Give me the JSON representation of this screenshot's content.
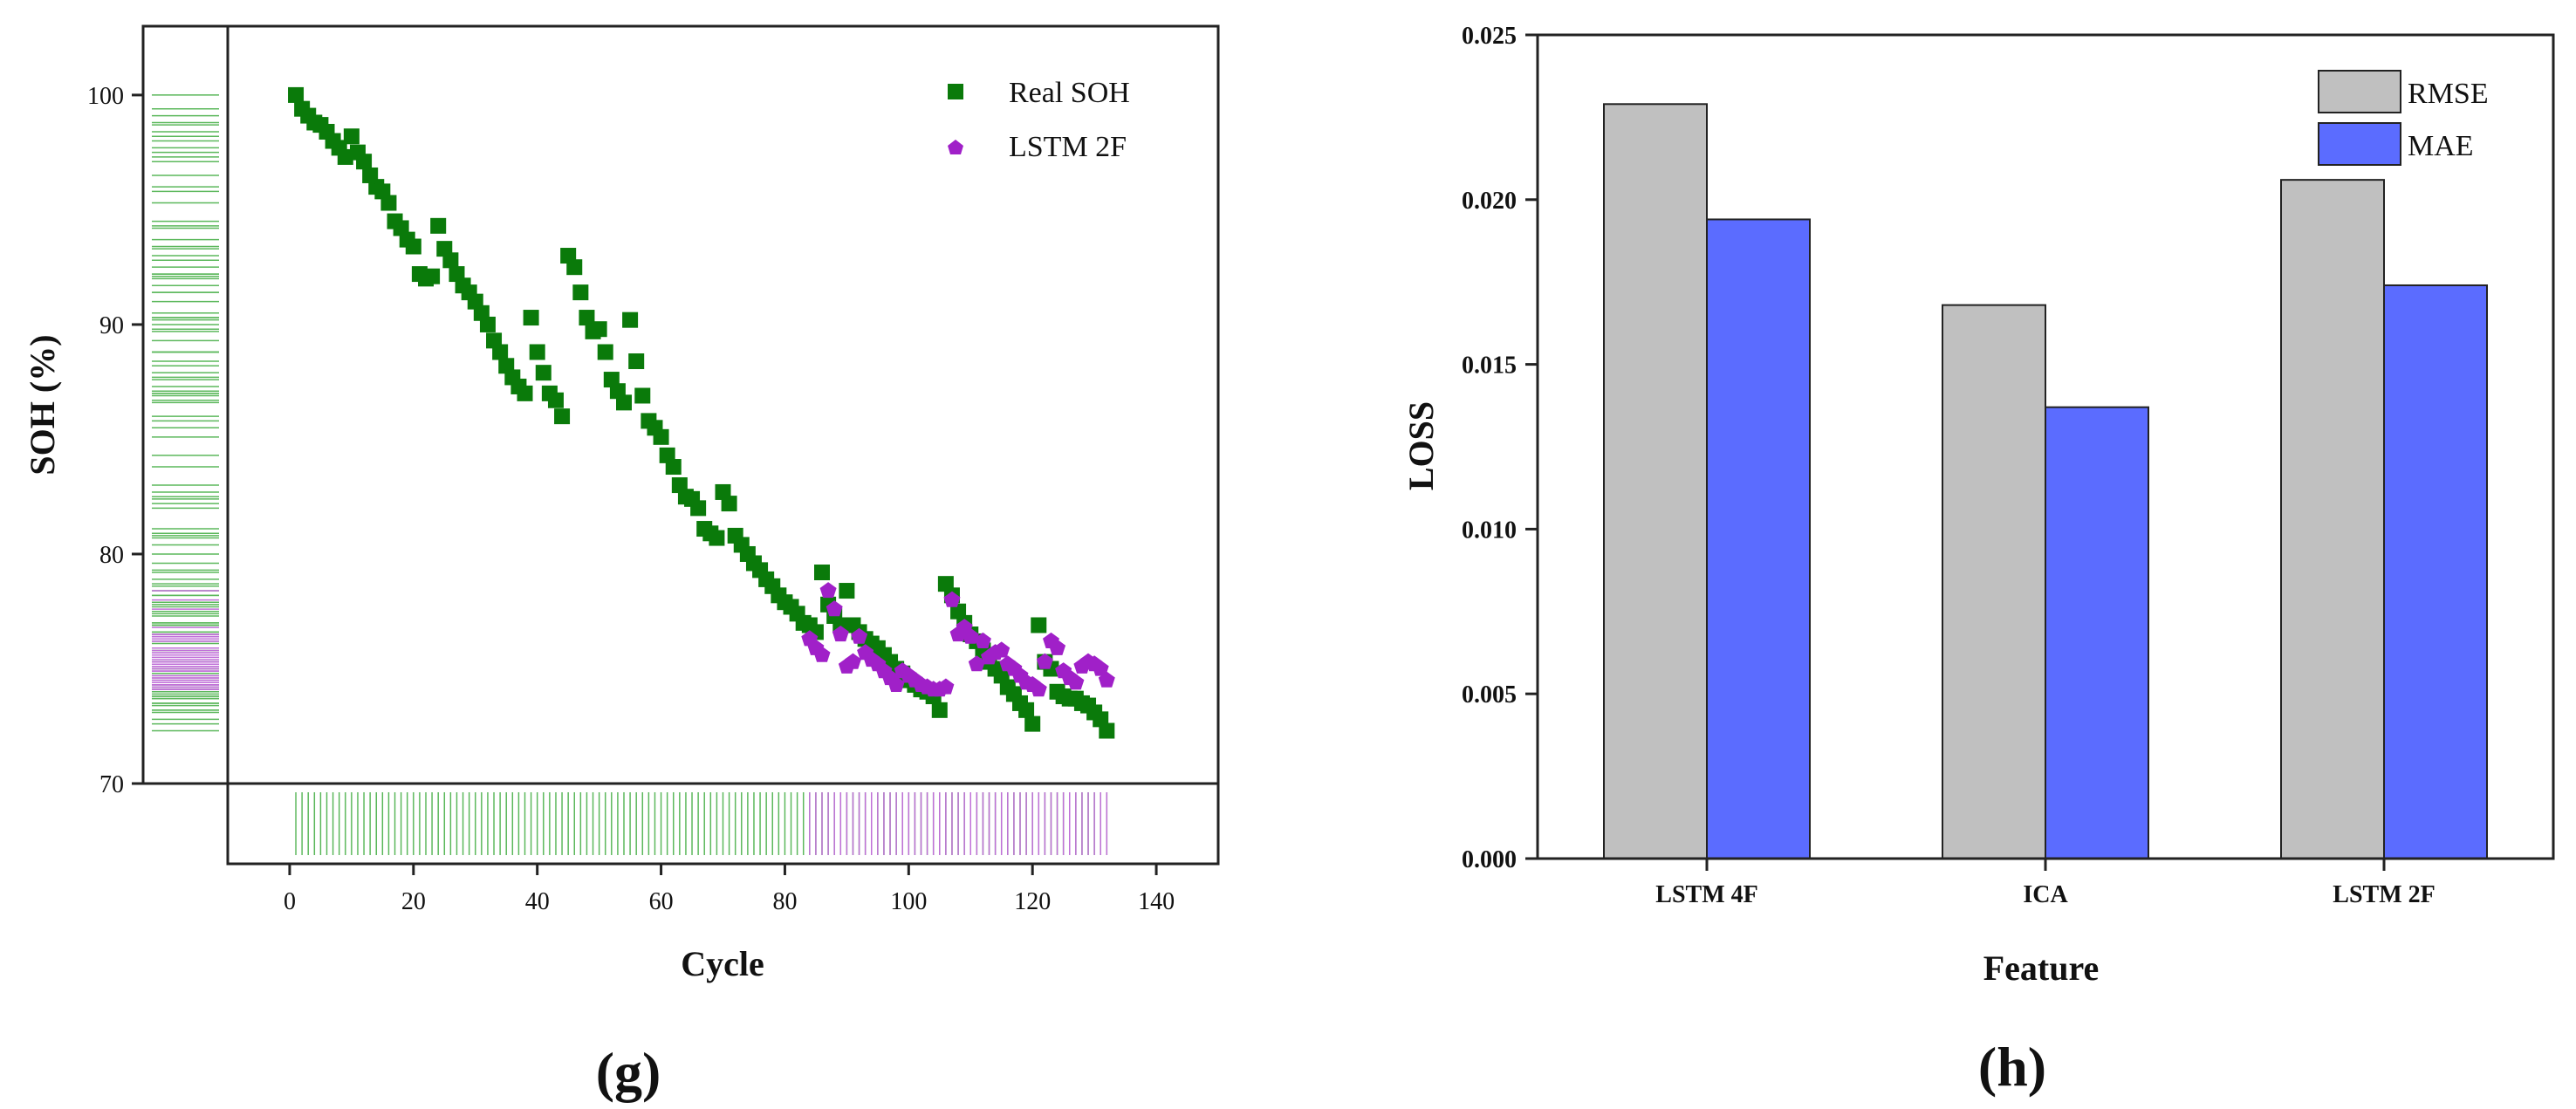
{
  "chart_data": [
    {
      "type": "scatter",
      "panel_label": "(g)",
      "xlabel": "Cycle",
      "ylabel": "SOH (%)",
      "xlim": [
        -10,
        150
      ],
      "ylim": [
        70,
        103
      ],
      "xticks": [
        0,
        20,
        40,
        60,
        80,
        100,
        120,
        140
      ],
      "yticks": [
        70,
        80,
        90,
        100
      ],
      "legend_position": "top-right",
      "marginal_rugs": true,
      "colors": {
        "real": "#0a7a0a",
        "lstm": "#a020c8",
        "real_rug": "#5cb85c",
        "lstm_rug": "#c070d8"
      },
      "series": [
        {
          "name": "Real SOH",
          "marker": "square",
          "x": [
            1,
            2,
            3,
            4,
            5,
            6,
            7,
            8,
            9,
            10,
            11,
            12,
            13,
            14,
            15,
            16,
            17,
            18,
            19,
            20,
            21,
            22,
            23,
            24,
            25,
            26,
            27,
            28,
            29,
            30,
            31,
            32,
            33,
            34,
            35,
            36,
            37,
            38,
            39,
            40,
            41,
            42,
            43,
            44,
            45,
            46,
            47,
            48,
            49,
            50,
            51,
            52,
            53,
            54,
            55,
            56,
            57,
            58,
            59,
            60,
            61,
            62,
            63,
            64,
            65,
            66,
            67,
            68,
            69,
            70,
            71,
            72,
            73,
            74,
            75,
            76,
            77,
            78,
            79,
            80,
            81,
            82,
            83,
            84,
            85,
            86,
            87,
            88,
            89,
            90,
            91,
            92,
            93,
            94,
            95,
            96,
            97,
            98,
            99,
            100,
            101,
            102,
            103,
            104,
            105,
            106,
            107,
            108,
            109,
            110,
            111,
            112,
            113,
            114,
            115,
            116,
            117,
            118,
            119,
            120,
            121,
            122,
            123,
            124,
            125,
            126,
            127,
            128,
            129,
            130,
            131,
            132
          ],
          "y": [
            100.0,
            99.4,
            99.1,
            98.8,
            98.7,
            98.4,
            98.0,
            97.7,
            97.3,
            98.2,
            97.5,
            97.1,
            96.5,
            96.0,
            95.8,
            95.3,
            94.5,
            94.2,
            93.7,
            93.4,
            92.2,
            92.0,
            92.1,
            94.3,
            93.3,
            92.8,
            92.2,
            91.7,
            91.4,
            91.0,
            90.5,
            90.0,
            89.3,
            88.8,
            88.2,
            87.7,
            87.3,
            87.0,
            90.3,
            88.8,
            87.9,
            87.0,
            86.7,
            86.0,
            93.0,
            92.5,
            91.4,
            90.3,
            89.7,
            89.8,
            88.8,
            87.6,
            87.1,
            86.6,
            90.2,
            88.4,
            86.9,
            85.8,
            85.5,
            85.1,
            84.3,
            83.8,
            83.0,
            82.5,
            82.4,
            82.0,
            81.1,
            80.9,
            80.7,
            82.7,
            82.2,
            80.8,
            80.4,
            80.0,
            79.6,
            79.3,
            78.9,
            78.6,
            78.2,
            77.9,
            77.7,
            77.4,
            77.0,
            76.9,
            76.6,
            79.2,
            77.8,
            77.3,
            76.9,
            78.4,
            76.9,
            76.6,
            76.3,
            76.1,
            75.9,
            75.6,
            75.3,
            75.0,
            74.8,
            74.5,
            74.3,
            74.1,
            74.0,
            73.8,
            73.2,
            78.7,
            78.2,
            77.5,
            77.0,
            76.5,
            76.2,
            75.8,
            75.3,
            75.0,
            74.7,
            74.2,
            73.9,
            73.5,
            73.2,
            72.6,
            76.9,
            75.3,
            75.0,
            74.0,
            73.8,
            73.7,
            73.7,
            73.5,
            73.4,
            73.1,
            72.8,
            72.3
          ]
        },
        {
          "name": "LSTM 2F",
          "marker": "pentagon",
          "x": [
            84,
            85,
            86,
            87,
            88,
            89,
            90,
            91,
            92,
            93,
            94,
            95,
            96,
            97,
            98,
            99,
            100,
            101,
            102,
            103,
            104,
            105,
            106,
            107,
            108,
            109,
            110,
            111,
            112,
            113,
            114,
            115,
            116,
            117,
            118,
            119,
            120,
            121,
            122,
            123,
            124,
            125,
            126,
            127,
            128,
            129,
            130,
            131,
            132
          ],
          "y": [
            76.3,
            75.9,
            75.6,
            78.4,
            77.6,
            76.5,
            75.1,
            75.3,
            76.4,
            75.7,
            75.4,
            75.2,
            74.9,
            74.6,
            74.3,
            74.9,
            74.7,
            74.5,
            74.3,
            74.2,
            74.1,
            74.1,
            74.2,
            78.0,
            76.5,
            76.8,
            76.4,
            75.2,
            76.2,
            75.5,
            75.7,
            75.8,
            75.2,
            75.0,
            74.7,
            74.4,
            74.3,
            74.1,
            75.3,
            76.2,
            75.9,
            74.9,
            74.6,
            74.4,
            75.1,
            75.3,
            75.2,
            75.0,
            74.5
          ]
        }
      ]
    },
    {
      "type": "bar",
      "panel_label": "(h)",
      "xlabel": "Feature",
      "ylabel": "LOSS",
      "ylim": [
        0,
        0.025
      ],
      "yticks": [
        "0.000",
        "0.005",
        "0.010",
        "0.015",
        "0.020",
        "0.025"
      ],
      "categories": [
        "LSTM 4F",
        "ICA",
        "LSTM 2F"
      ],
      "legend_position": "top-right",
      "series": [
        {
          "name": "RMSE",
          "color": "#c0c0c0",
          "values": [
            0.0229,
            0.0168,
            0.0206
          ]
        },
        {
          "name": "MAE",
          "color": "#5b6cff",
          "values": [
            0.0194,
            0.0137,
            0.0174
          ]
        }
      ]
    }
  ]
}
